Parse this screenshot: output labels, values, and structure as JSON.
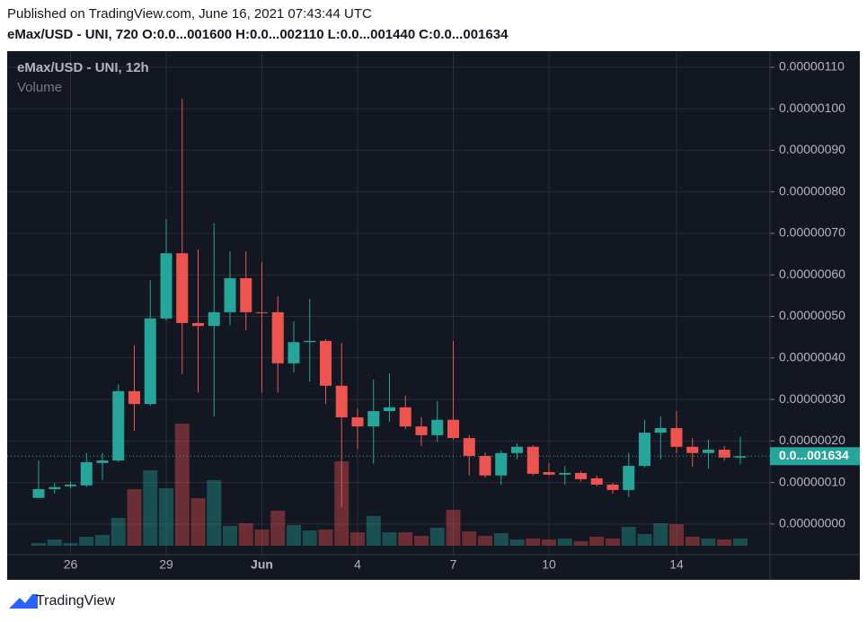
{
  "header": {
    "published": "Published on TradingView.com, June 16, 2021 07:43:44 UTC",
    "symbol": "eMax/USD - UNI, 720",
    "ohlc": [
      {
        "label": "O:",
        "value": "0.0...001600"
      },
      {
        "label": "H:",
        "value": "0.0...002110"
      },
      {
        "label": "L:",
        "value": "0.0...001440"
      },
      {
        "label": "C:",
        "value": "0.0...001634"
      }
    ]
  },
  "chart_data": {
    "type": "candlestick",
    "title": "eMax/USD - UNI, 12h",
    "volume_label": "Volume",
    "categories": [
      null,
      null,
      "26",
      null,
      null,
      null,
      null,
      null,
      "29",
      null,
      null,
      null,
      null,
      null,
      "Jun",
      null,
      null,
      null,
      null,
      null,
      "4",
      null,
      null,
      null,
      null,
      null,
      "7",
      null,
      null,
      null,
      null,
      null,
      "10",
      null,
      null,
      null,
      null,
      null,
      null,
      null,
      "14",
      null,
      null,
      null,
      null
    ],
    "open": [
      6.3e-08,
      8.4e-08,
      9.1e-08,
      9.3e-08,
      1.47e-07,
      1.53e-07,
      3.2e-07,
      2.89e-07,
      4.95e-07,
      6.52e-07,
      4.84e-07,
      4.77e-07,
      5.1e-07,
      5.92e-07,
      5.1e-07,
      5.1e-07,
      3.87e-07,
      4.38e-07,
      4.41e-07,
      3.33e-07,
      2.57e-07,
      2.35e-07,
      2.72e-07,
      2.81e-07,
      2.35e-07,
      2.14e-07,
      2.51e-07,
      2.07e-07,
      1.64e-07,
      1.17e-07,
      1.71e-07,
      1.86e-07,
      1.25e-07,
      1.19e-07,
      1.23e-07,
      1.1e-07,
      9.5e-08,
      8.2e-08,
      1.4e-07,
      2.2e-07,
      2.31e-07,
      1.86e-07,
      1.71e-07,
      1.79e-07,
      1.6e-07
    ],
    "high": [
      1.53e-07,
      9.9e-08,
      1.02e-07,
      1.71e-07,
      1.71e-07,
      3.37e-07,
      4.3e-07,
      5.87e-07,
      7.34e-07,
      1.024e-06,
      6.61e-07,
      7.24e-07,
      6.57e-07,
      6.57e-07,
      6.31e-07,
      5.49e-07,
      4.88e-07,
      5.42e-07,
      4.45e-07,
      4.36e-07,
      2.79e-07,
      3.48e-07,
      3.63e-07,
      3.09e-07,
      2.57e-07,
      2.96e-07,
      4.41e-07,
      2.14e-07,
      1.73e-07,
      1.77e-07,
      1.94e-07,
      1.9e-07,
      1.47e-07,
      1.4e-07,
      1.27e-07,
      1.17e-07,
      9.9e-08,
      1.71e-07,
      2.51e-07,
      2.59e-07,
      2.72e-07,
      2.07e-07,
      2.03e-07,
      1.88e-07,
      2.11e-07
    ],
    "low": [
      6.3e-08,
      7.3e-08,
      8.6e-08,
      8.9e-08,
      1.06e-07,
      1.49e-07,
      2.25e-07,
      2.85e-07,
      4.9e-07,
      3.61e-07,
      3.17e-07,
      2.59e-07,
      4.79e-07,
      4.67e-07,
      3.17e-07,
      3.17e-07,
      3.65e-07,
      3.43e-07,
      2.89e-07,
      4.1e-08,
      1.81e-07,
      1.45e-07,
      2.46e-07,
      2.29e-07,
      1.88e-07,
      1.97e-07,
      2.03e-07,
      1.17e-07,
      1.12e-07,
      9.5e-08,
      1.56e-07,
      1.17e-07,
      1.17e-07,
      9.5e-08,
      1.02e-07,
      9.1e-08,
      7.3e-08,
      6.5e-08,
      1.36e-07,
      1.56e-07,
      1.71e-07,
      1.38e-07,
      1.34e-07,
      1.53e-07,
      1.44e-07
    ],
    "close": [
      8.4e-08,
      8.9e-08,
      9.5e-08,
      1.49e-07,
      1.53e-07,
      3.2e-07,
      2.89e-07,
      4.95e-07,
      6.52e-07,
      4.84e-07,
      4.77e-07,
      5.1e-07,
      5.92e-07,
      5.1e-07,
      5.08e-07,
      3.87e-07,
      4.38e-07,
      4.41e-07,
      3.33e-07,
      2.57e-07,
      2.35e-07,
      2.72e-07,
      2.81e-07,
      2.35e-07,
      2.14e-07,
      2.51e-07,
      2.07e-07,
      1.64e-07,
      1.17e-07,
      1.71e-07,
      1.86e-07,
      1.21e-07,
      1.19e-07,
      1.23e-07,
      1.08e-07,
      9.5e-08,
      8.2e-08,
      1.4e-07,
      2.2e-07,
      2.31e-07,
      1.86e-07,
      1.71e-07,
      1.79e-07,
      1.6e-07,
      1.634e-07
    ],
    "volume": [
      3,
      7,
      3,
      10,
      12,
      31,
      63,
      84,
      64,
      136,
      53,
      73,
      22,
      25,
      18,
      39,
      23,
      17,
      18,
      94,
      15,
      33,
      15,
      15,
      11,
      20,
      40,
      16,
      11,
      14,
      7,
      8,
      7,
      8,
      5,
      10,
      8,
      21,
      13,
      25,
      24,
      10,
      8,
      7,
      8
    ],
    "up_color": "#26a69a",
    "down_color": "#ef5350",
    "last_value_label": "0.0...001634",
    "ylim": [
      -5e-08,
      1.13e-06
    ],
    "yticks": [
      {
        "value": 0,
        "label": "0.00000000"
      },
      {
        "value": 1e-07,
        "label": "0.00000010"
      },
      {
        "value": 2e-07,
        "label": "0.00000020"
      },
      {
        "value": 3e-07,
        "label": "0.00000030"
      },
      {
        "value": 4e-07,
        "label": "0.00000040"
      },
      {
        "value": 5e-07,
        "label": "0.00000050"
      },
      {
        "value": 6e-07,
        "label": "0.00000060"
      },
      {
        "value": 7e-07,
        "label": "0.00000070"
      },
      {
        "value": 8e-07,
        "label": "0.00000080"
      },
      {
        "value": 9e-07,
        "label": "0.00000090"
      },
      {
        "value": 1e-06,
        "label": "0.00000100"
      },
      {
        "value": 1.1e-06,
        "label": "0.00000110"
      }
    ],
    "grid": true
  },
  "footer": {
    "brand": "TradingView"
  }
}
